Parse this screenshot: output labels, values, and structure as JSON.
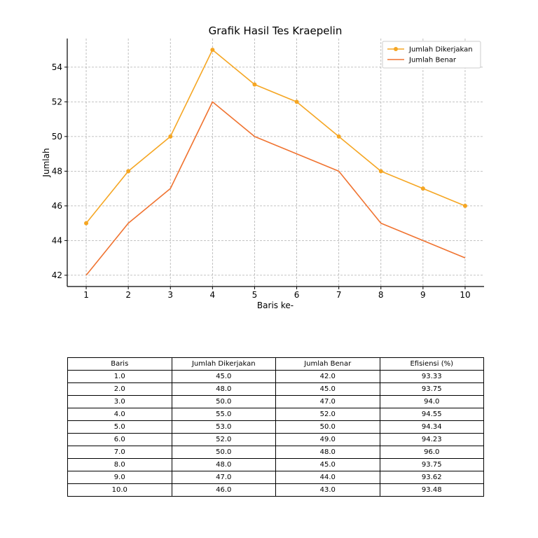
{
  "chart_data": {
    "type": "line",
    "title": "Grafik Hasil Tes Kraepelin",
    "xlabel": "Baris ke-",
    "ylabel": "Jumlah",
    "x": [
      1,
      2,
      3,
      4,
      5,
      6,
      7,
      8,
      9,
      10
    ],
    "xticks": [
      "1",
      "2",
      "3",
      "4",
      "5",
      "6",
      "7",
      "8",
      "9",
      "10"
    ],
    "yticks": [
      "42",
      "44",
      "46",
      "48",
      "50",
      "52",
      "54"
    ],
    "xlim": [
      0.55,
      10.45
    ],
    "ylim": [
      41.35,
      55.65
    ],
    "grid": true,
    "legend_position": "top-right",
    "series": [
      {
        "name": "Jumlah Dikerjakan",
        "color": "#f5a623",
        "marker": "circle",
        "values": [
          45,
          48,
          50,
          55,
          53,
          52,
          50,
          48,
          47,
          46
        ]
      },
      {
        "name": "Jumlah Benar",
        "color": "#f07330",
        "marker": "none",
        "values": [
          42,
          45,
          47,
          52,
          50,
          49,
          48,
          45,
          44,
          43
        ]
      }
    ]
  },
  "table": {
    "headers": [
      "Baris",
      "Jumlah Dikerjakan",
      "Jumlah Benar",
      "Efisiensi (%)"
    ],
    "rows": [
      [
        "1.0",
        "45.0",
        "42.0",
        "93.33"
      ],
      [
        "2.0",
        "48.0",
        "45.0",
        "93.75"
      ],
      [
        "3.0",
        "50.0",
        "47.0",
        "94.0"
      ],
      [
        "4.0",
        "55.0",
        "52.0",
        "94.55"
      ],
      [
        "5.0",
        "53.0",
        "50.0",
        "94.34"
      ],
      [
        "6.0",
        "52.0",
        "49.0",
        "94.23"
      ],
      [
        "7.0",
        "50.0",
        "48.0",
        "96.0"
      ],
      [
        "8.0",
        "48.0",
        "45.0",
        "93.75"
      ],
      [
        "9.0",
        "47.0",
        "44.0",
        "93.62"
      ],
      [
        "10.0",
        "46.0",
        "43.0",
        "93.48"
      ]
    ]
  }
}
